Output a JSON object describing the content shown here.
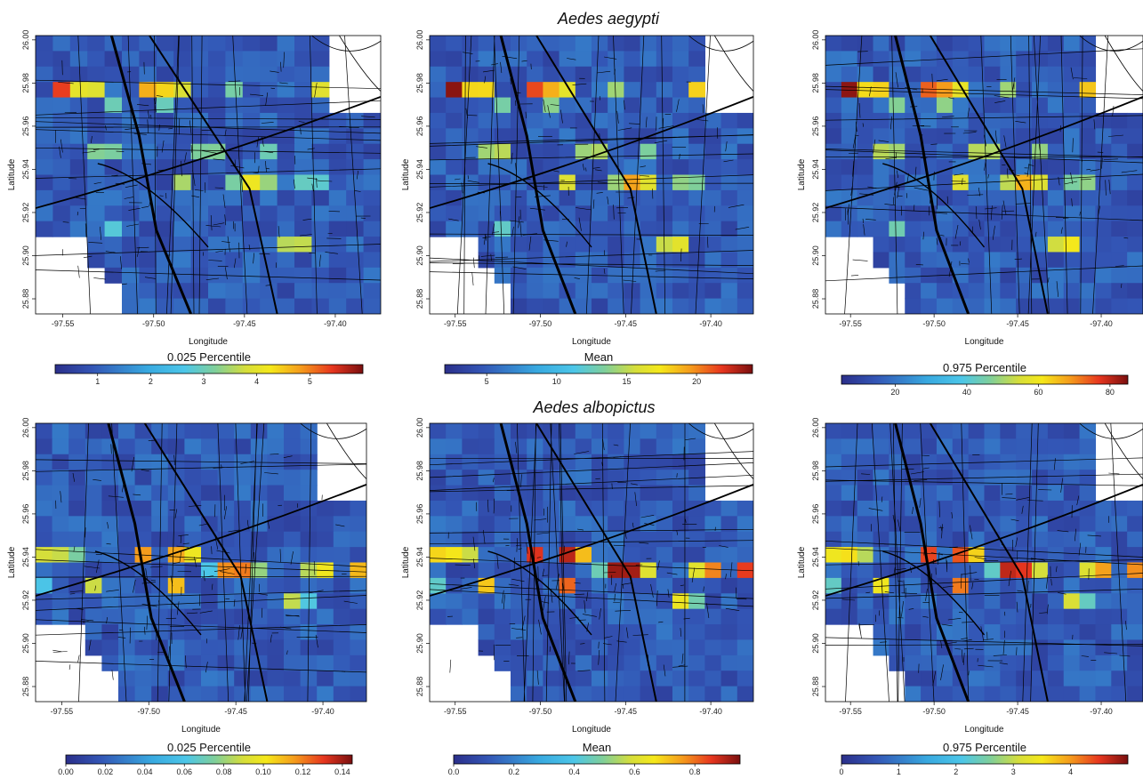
{
  "chart_data": {
    "type": "heatmap",
    "colormap": [
      "#2b2f8a",
      "#3355b5",
      "#38a9e0",
      "#4cc6e8",
      "#7fcf9a",
      "#d6de3a",
      "#f5e81a",
      "#f59a1c",
      "#e7361f",
      "#7a0f0f"
    ],
    "x_ticks": [
      "-97.55",
      "-97.50",
      "-97.45",
      "-97.40"
    ],
    "x_tick_values": [
      -97.55,
      -97.5,
      -97.45,
      -97.4
    ],
    "y_ticks": [
      "25.88",
      "25.90",
      "25.92",
      "25.94",
      "25.96",
      "25.98",
      "26.00"
    ],
    "y_tick_values": [
      25.88,
      25.9,
      25.92,
      25.94,
      25.96,
      25.98,
      26.0
    ],
    "xlim": [
      -97.565,
      -97.375
    ],
    "ylim": [
      25.873,
      26.002
    ],
    "xlabel": "Longitude",
    "ylabel": "Latitude",
    "grid": false,
    "rows": [
      {
        "title": "Aedes aegypti",
        "panels": [
          {
            "colorbar_title": "0.025 Percentile",
            "colorbar_ticks": [
              "1",
              "2",
              "3",
              "4",
              "5"
            ],
            "colorbar_tick_values": [
              1,
              2,
              3,
              4,
              5
            ],
            "range": [
              0.2,
              6.0
            ]
          },
          {
            "colorbar_title": "Mean",
            "colorbar_ticks": [
              "5",
              "10",
              "15",
              "20"
            ],
            "colorbar_tick_values": [
              5,
              10,
              15,
              20
            ],
            "range": [
              2.0,
              24.0
            ]
          },
          {
            "colorbar_title": "0.975 Percentile",
            "colorbar_ticks": [
              "20",
              "40",
              "60",
              "80"
            ],
            "colorbar_tick_values": [
              20,
              40,
              60,
              80
            ],
            "range": [
              5.0,
              85.0
            ]
          }
        ]
      },
      {
        "title": "Aedes albopictus",
        "panels": [
          {
            "colorbar_title": "0.025 Percentile",
            "colorbar_ticks": [
              "0.00",
              "0.02",
              "0.04",
              "0.06",
              "0.08",
              "0.10",
              "0.12",
              "0.14"
            ],
            "colorbar_tick_values": [
              0.0,
              0.02,
              0.04,
              0.06,
              0.08,
              0.1,
              0.12,
              0.14
            ],
            "range": [
              0.0,
              0.145
            ]
          },
          {
            "colorbar_title": "Mean",
            "colorbar_ticks": [
              "0.0",
              "0.2",
              "0.4",
              "0.6",
              "0.8"
            ],
            "colorbar_tick_values": [
              0.0,
              0.2,
              0.4,
              0.6,
              0.8
            ],
            "range": [
              0.0,
              0.95
            ]
          },
          {
            "colorbar_title": "0.975 Percentile",
            "colorbar_ticks": [
              "0",
              "1",
              "2",
              "3",
              "4"
            ],
            "colorbar_tick_values": [
              0,
              1,
              2,
              3,
              4
            ],
            "range": [
              0.0,
              5.0
            ]
          }
        ]
      }
    ]
  }
}
